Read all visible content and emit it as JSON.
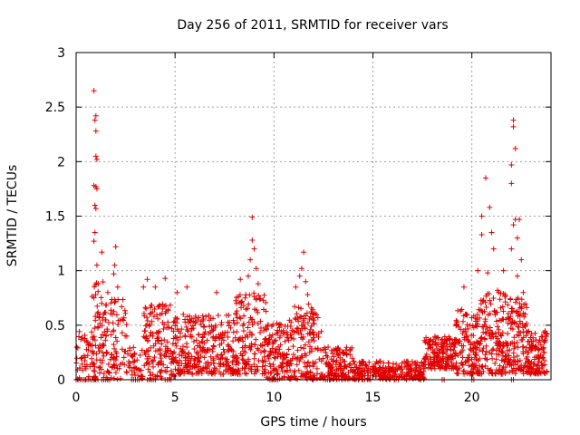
{
  "chart_data": {
    "type": "scatter",
    "title": "Day 256 of 2011, SRMTID for receiver vars",
    "xlabel": "GPS time / hours",
    "ylabel": "SRMTID / TECUs",
    "xlim": [
      0,
      24
    ],
    "ylim": [
      0,
      3
    ],
    "xticks": [
      0,
      5,
      10,
      15,
      20
    ],
    "xtick_labels": [
      "0",
      "5",
      "10",
      "15",
      "20"
    ],
    "yticks": [
      0,
      0.5,
      1,
      1.5,
      2,
      2.5,
      3
    ],
    "ytick_labels": [
      "0",
      "0.5",
      "1",
      "1.5",
      "2",
      "2.5",
      "3"
    ],
    "grid": true,
    "marker": "+",
    "color": "#e00000",
    "highlight_points": [
      [
        0.9,
        2.65
      ],
      [
        1.0,
        2.42
      ],
      [
        0.95,
        2.38
      ],
      [
        1.0,
        2.28
      ],
      [
        1.0,
        2.05
      ],
      [
        1.05,
        2.02
      ],
      [
        0.9,
        1.78
      ],
      [
        1.0,
        1.77
      ],
      [
        1.05,
        1.75
      ],
      [
        0.95,
        1.6
      ],
      [
        1.0,
        1.57
      ],
      [
        0.95,
        1.35
      ],
      [
        0.9,
        1.27
      ],
      [
        1.3,
        1.17
      ],
      [
        1.05,
        1.05
      ],
      [
        2.0,
        1.22
      ],
      [
        1.95,
        1.05
      ],
      [
        1.9,
        0.97
      ],
      [
        2.1,
        0.85
      ],
      [
        1.6,
        0.8
      ],
      [
        2.0,
        0.72
      ],
      [
        1.2,
        0.6
      ],
      [
        1.5,
        0.55
      ],
      [
        3.6,
        0.92
      ],
      [
        4.5,
        0.93
      ],
      [
        4.0,
        0.85
      ],
      [
        3.4,
        0.85
      ],
      [
        5.6,
        0.85
      ],
      [
        5.1,
        0.8
      ],
      [
        7.1,
        0.8
      ],
      [
        8.3,
        0.92
      ],
      [
        8.9,
        1.49
      ],
      [
        8.9,
        1.28
      ],
      [
        9.0,
        1.2
      ],
      [
        8.8,
        1.1
      ],
      [
        9.1,
        1.02
      ],
      [
        8.7,
        0.95
      ],
      [
        9.2,
        0.88
      ],
      [
        11.5,
        1.17
      ],
      [
        11.4,
        1.02
      ],
      [
        11.3,
        0.95
      ],
      [
        11.6,
        0.9
      ],
      [
        11.1,
        0.85
      ],
      [
        11.7,
        0.78
      ],
      [
        12.0,
        0.6
      ],
      [
        19.6,
        0.85
      ],
      [
        20.3,
        1.0
      ],
      [
        20.5,
        1.5
      ],
      [
        20.5,
        1.33
      ],
      [
        20.7,
        1.85
      ],
      [
        20.9,
        1.58
      ],
      [
        21.0,
        1.35
      ],
      [
        21.1,
        1.2
      ],
      [
        20.8,
        0.98
      ],
      [
        21.3,
        0.82
      ],
      [
        21.6,
        1.0
      ],
      [
        22.1,
        2.38
      ],
      [
        22.1,
        2.32
      ],
      [
        22.2,
        2.12
      ],
      [
        22.0,
        1.97
      ],
      [
        22.0,
        1.8
      ],
      [
        22.2,
        1.47
      ],
      [
        22.4,
        1.47
      ],
      [
        22.1,
        1.42
      ],
      [
        22.3,
        1.3
      ],
      [
        22.0,
        1.2
      ],
      [
        22.5,
        1.1
      ],
      [
        22.3,
        0.95
      ],
      [
        22.6,
        0.8
      ],
      [
        22.7,
        0.6
      ]
    ],
    "series": [
      {
        "name": "SRMTID",
        "segments": [
          {
            "x": [
              0.0,
              0.8
            ],
            "y_min": 0.0,
            "y_max": 0.45,
            "n": 40
          },
          {
            "x": [
              0.8,
              1.4
            ],
            "y_min": 0.0,
            "y_max": 0.9,
            "n": 70
          },
          {
            "x": [
              1.4,
              2.6
            ],
            "y_min": 0.0,
            "y_max": 0.75,
            "n": 90
          },
          {
            "x": [
              2.6,
              3.4
            ],
            "y_min": 0.0,
            "y_max": 0.3,
            "n": 35
          },
          {
            "x": [
              3.4,
              5.0
            ],
            "y_min": 0.0,
            "y_max": 0.7,
            "n": 150
          },
          {
            "x": [
              5.0,
              8.0
            ],
            "y_min": 0.05,
            "y_max": 0.6,
            "n": 300
          },
          {
            "x": [
              8.0,
              9.6
            ],
            "y_min": 0.05,
            "y_max": 0.8,
            "n": 160
          },
          {
            "x": [
              9.6,
              11.0
            ],
            "y_min": 0.0,
            "y_max": 0.55,
            "n": 140
          },
          {
            "x": [
              11.0,
              12.4
            ],
            "y_min": 0.0,
            "y_max": 0.7,
            "n": 140
          },
          {
            "x": [
              12.4,
              14.0
            ],
            "y_min": 0.0,
            "y_max": 0.3,
            "n": 140
          },
          {
            "x": [
              14.0,
              17.6
            ],
            "y_min": 0.0,
            "y_max": 0.17,
            "n": 260
          },
          {
            "x": [
              17.6,
              19.2
            ],
            "y_min": 0.1,
            "y_max": 0.4,
            "n": 170
          },
          {
            "x": [
              19.2,
              20.4
            ],
            "y_min": 0.05,
            "y_max": 0.65,
            "n": 140
          },
          {
            "x": [
              20.4,
              21.8
            ],
            "y_min": 0.05,
            "y_max": 0.8,
            "n": 160
          },
          {
            "x": [
              21.8,
              22.8
            ],
            "y_min": 0.05,
            "y_max": 0.75,
            "n": 130
          },
          {
            "x": [
              22.8,
              23.8
            ],
            "y_min": 0.05,
            "y_max": 0.45,
            "n": 120
          }
        ],
        "zero_runs": [
          [
            0.0,
            1.1
          ],
          [
            1.3,
            1.8
          ],
          [
            2.8,
            3.3
          ],
          [
            3.6,
            4.0
          ],
          [
            4.5,
            4.8
          ],
          [
            9.8,
            10.1
          ],
          [
            12.6,
            12.8
          ],
          [
            18.5,
            18.6
          ],
          [
            20.0,
            20.1
          ],
          [
            22.0,
            22.1
          ]
        ]
      }
    ]
  }
}
